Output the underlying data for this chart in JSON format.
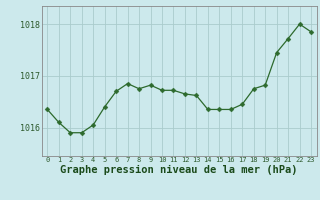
{
  "x": [
    0,
    1,
    2,
    3,
    4,
    5,
    6,
    7,
    8,
    9,
    10,
    11,
    12,
    13,
    14,
    15,
    16,
    17,
    18,
    19,
    20,
    21,
    22,
    23
  ],
  "y": [
    1016.35,
    1016.1,
    1015.9,
    1015.9,
    1016.05,
    1016.4,
    1016.7,
    1016.85,
    1016.75,
    1016.82,
    1016.72,
    1016.72,
    1016.65,
    1016.62,
    1016.35,
    1016.35,
    1016.35,
    1016.45,
    1016.75,
    1016.82,
    1017.45,
    1017.72,
    1018.0,
    1017.85
  ],
  "line_color": "#2d6a2d",
  "marker": "D",
  "marker_size": 2.5,
  "background_color": "#cce9ec",
  "grid_color": "#aacccc",
  "xlabel": "Graphe pression niveau de la mer (hPa)",
  "xlabel_fontsize": 7.5,
  "ylabel_ticks": [
    1016,
    1017,
    1018
  ],
  "ylim": [
    1015.45,
    1018.35
  ],
  "xlim": [
    -0.5,
    23.5
  ],
  "tick_label_color": "#2d5a2d",
  "axis_color": "#888888",
  "title_color": "#1a4a1a"
}
